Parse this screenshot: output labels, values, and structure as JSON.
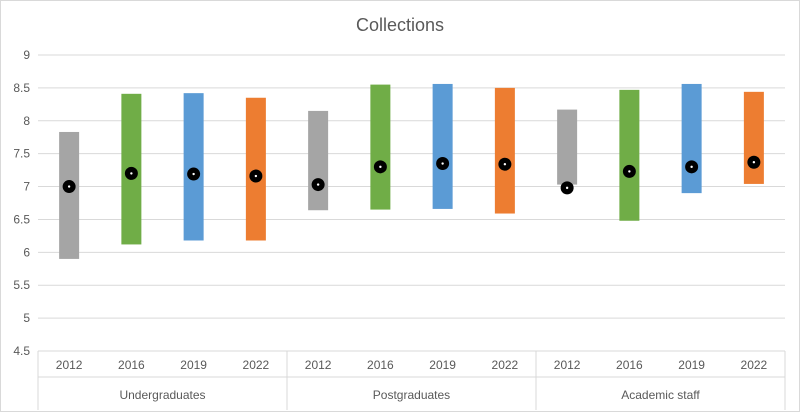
{
  "chart_data": {
    "type": "range-bar",
    "title": "Collections",
    "ylim": [
      4.5,
      9
    ],
    "yticks": [
      "4.5",
      "5",
      "5.5",
      "6",
      "6.5",
      "7",
      "7.5",
      "8",
      "8.5",
      "9"
    ],
    "grid": true,
    "legend": "none",
    "groups": [
      {
        "name": "Undergraduates",
        "categories": [
          {
            "label": "2012",
            "low": 5.9,
            "high": 7.83,
            "mean": 7.0
          },
          {
            "label": "2016",
            "low": 6.12,
            "high": 8.41,
            "mean": 7.2
          },
          {
            "label": "2019",
            "low": 6.18,
            "high": 8.42,
            "mean": 7.19
          },
          {
            "label": "2022",
            "low": 6.18,
            "high": 8.35,
            "mean": 7.16
          }
        ]
      },
      {
        "name": "Postgraduates",
        "categories": [
          {
            "label": "2012",
            "low": 6.64,
            "high": 8.15,
            "mean": 7.03
          },
          {
            "label": "2016",
            "low": 6.65,
            "high": 8.55,
            "mean": 7.3
          },
          {
            "label": "2019",
            "low": 6.66,
            "high": 8.56,
            "mean": 7.35
          },
          {
            "label": "2022",
            "low": 6.59,
            "high": 8.5,
            "mean": 7.34
          }
        ]
      },
      {
        "name": "Academic staff",
        "categories": [
          {
            "label": "2012",
            "low": 7.03,
            "high": 8.17,
            "mean": 6.98
          },
          {
            "label": "2016",
            "low": 6.48,
            "high": 8.47,
            "mean": 7.23
          },
          {
            "label": "2019",
            "low": 6.9,
            "high": 8.56,
            "mean": 7.3
          },
          {
            "label": "2022",
            "low": 7.04,
            "high": 8.44,
            "mean": 7.37
          }
        ]
      }
    ],
    "colors": {
      "2012": "#a5a5a5",
      "2016": "#70ad47",
      "2019": "#5b9bd5",
      "2022": "#ed7d31",
      "gridline": "#d9d9d9",
      "marker": "#000000"
    }
  }
}
